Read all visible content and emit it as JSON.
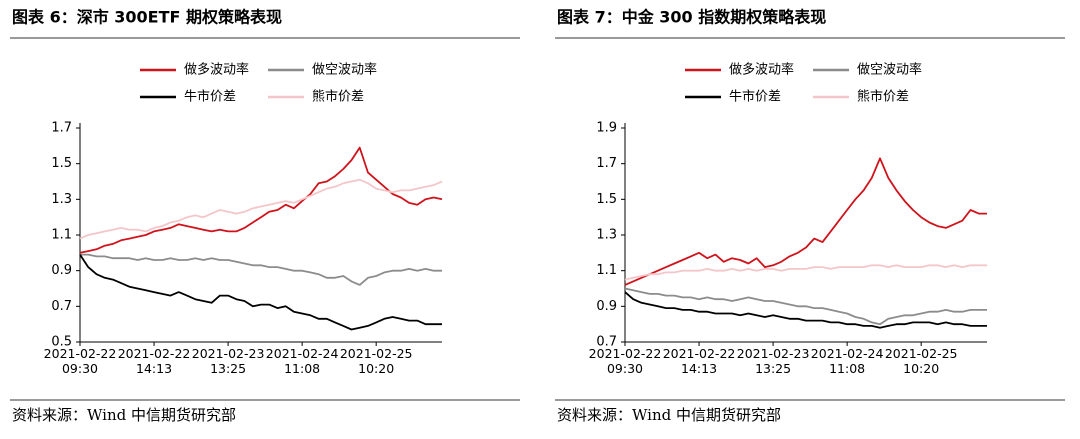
{
  "chart_data": [
    {
      "type": "line",
      "title": "图表 6：深市 300ETF 期权策略表现",
      "source": "资料来源：Wind 中信期货研究部",
      "categories": [
        "2021-02-22\n09:30",
        null,
        null,
        null,
        null,
        null,
        null,
        null,
        null,
        "2021-02-22\n14:13",
        null,
        null,
        null,
        null,
        null,
        null,
        null,
        null,
        "2021-02-23\n13:25",
        null,
        null,
        null,
        null,
        null,
        null,
        null,
        null,
        "2021-02-24\n11:08",
        null,
        null,
        null,
        null,
        null,
        null,
        null,
        null,
        "2021-02-25\n10:20",
        null,
        null,
        null,
        null,
        null,
        null,
        null,
        null
      ],
      "ylim": [
        0.5,
        1.7
      ],
      "yticks": [
        0.5,
        0.7,
        0.9,
        1.1,
        1.3,
        1.5,
        1.7
      ],
      "series": [
        {
          "name": "做多波动率",
          "color": "#d0121b",
          "values": [
            1.0,
            1.01,
            1.02,
            1.04,
            1.05,
            1.07,
            1.08,
            1.09,
            1.1,
            1.12,
            1.13,
            1.14,
            1.16,
            1.15,
            1.14,
            1.13,
            1.12,
            1.13,
            1.12,
            1.12,
            1.14,
            1.17,
            1.2,
            1.23,
            1.24,
            1.27,
            1.25,
            1.29,
            1.33,
            1.39,
            1.4,
            1.43,
            1.47,
            1.52,
            1.59,
            1.45,
            1.41,
            1.37,
            1.33,
            1.31,
            1.28,
            1.27,
            1.3,
            1.31,
            1.3
          ]
        },
        {
          "name": "做空波动率",
          "color": "#8c8c8c",
          "values": [
            0.99,
            0.99,
            0.98,
            0.98,
            0.97,
            0.97,
            0.97,
            0.96,
            0.97,
            0.96,
            0.96,
            0.97,
            0.96,
            0.96,
            0.97,
            0.96,
            0.97,
            0.96,
            0.96,
            0.95,
            0.94,
            0.93,
            0.93,
            0.92,
            0.92,
            0.91,
            0.9,
            0.9,
            0.89,
            0.88,
            0.86,
            0.86,
            0.87,
            0.84,
            0.82,
            0.86,
            0.87,
            0.89,
            0.9,
            0.9,
            0.91,
            0.9,
            0.91,
            0.9,
            0.9
          ]
        },
        {
          "name": "牛市价差",
          "color": "#000000",
          "values": [
            0.99,
            0.92,
            0.88,
            0.86,
            0.85,
            0.83,
            0.81,
            0.8,
            0.79,
            0.78,
            0.77,
            0.76,
            0.78,
            0.76,
            0.74,
            0.73,
            0.72,
            0.76,
            0.76,
            0.74,
            0.73,
            0.7,
            0.71,
            0.71,
            0.69,
            0.7,
            0.67,
            0.66,
            0.65,
            0.63,
            0.63,
            0.61,
            0.59,
            0.57,
            0.58,
            0.59,
            0.61,
            0.63,
            0.64,
            0.63,
            0.62,
            0.62,
            0.6,
            0.6,
            0.6
          ]
        },
        {
          "name": "熊市价差",
          "color": "#f4c6c9",
          "values": [
            1.08,
            1.1,
            1.11,
            1.12,
            1.13,
            1.14,
            1.13,
            1.13,
            1.12,
            1.14,
            1.15,
            1.17,
            1.18,
            1.2,
            1.21,
            1.2,
            1.22,
            1.24,
            1.23,
            1.22,
            1.23,
            1.25,
            1.26,
            1.27,
            1.28,
            1.29,
            1.28,
            1.3,
            1.32,
            1.34,
            1.36,
            1.37,
            1.39,
            1.4,
            1.41,
            1.39,
            1.36,
            1.35,
            1.34,
            1.35,
            1.35,
            1.36,
            1.37,
            1.38,
            1.4
          ]
        }
      ]
    },
    {
      "type": "line",
      "title": "图表 7：中金 300 指数期权策略表现",
      "source": "资料来源：Wind 中信期货研究部",
      "categories": [
        "2021-02-22\n09:30",
        null,
        null,
        null,
        null,
        null,
        null,
        null,
        null,
        "2021-02-22\n14:13",
        null,
        null,
        null,
        null,
        null,
        null,
        null,
        null,
        "2021-02-23\n13:25",
        null,
        null,
        null,
        null,
        null,
        null,
        null,
        null,
        "2021-02-24\n11:08",
        null,
        null,
        null,
        null,
        null,
        null,
        null,
        null,
        "2021-02-25\n10:20",
        null,
        null,
        null,
        null,
        null,
        null,
        null,
        null
      ],
      "ylim": [
        0.7,
        1.9
      ],
      "yticks": [
        0.7,
        0.9,
        1.1,
        1.3,
        1.5,
        1.7,
        1.9
      ],
      "series": [
        {
          "name": "做多波动率",
          "color": "#d0121b",
          "values": [
            1.02,
            1.04,
            1.06,
            1.08,
            1.1,
            1.12,
            1.14,
            1.16,
            1.18,
            1.2,
            1.17,
            1.19,
            1.15,
            1.17,
            1.16,
            1.14,
            1.17,
            1.12,
            1.13,
            1.15,
            1.18,
            1.2,
            1.23,
            1.28,
            1.26,
            1.32,
            1.38,
            1.44,
            1.5,
            1.55,
            1.62,
            1.73,
            1.62,
            1.55,
            1.49,
            1.44,
            1.4,
            1.37,
            1.35,
            1.34,
            1.36,
            1.38,
            1.44,
            1.42,
            1.42
          ]
        },
        {
          "name": "做空波动率",
          "color": "#8c8c8c",
          "values": [
            1.0,
            0.99,
            0.98,
            0.97,
            0.97,
            0.96,
            0.96,
            0.95,
            0.95,
            0.94,
            0.95,
            0.94,
            0.94,
            0.93,
            0.94,
            0.95,
            0.94,
            0.93,
            0.93,
            0.92,
            0.91,
            0.9,
            0.9,
            0.89,
            0.89,
            0.88,
            0.87,
            0.86,
            0.84,
            0.83,
            0.81,
            0.8,
            0.83,
            0.84,
            0.85,
            0.85,
            0.86,
            0.87,
            0.87,
            0.88,
            0.87,
            0.87,
            0.88,
            0.88,
            0.88
          ]
        },
        {
          "name": "牛市价差",
          "color": "#000000",
          "values": [
            0.98,
            0.94,
            0.92,
            0.91,
            0.9,
            0.89,
            0.89,
            0.88,
            0.88,
            0.87,
            0.87,
            0.86,
            0.86,
            0.86,
            0.85,
            0.86,
            0.85,
            0.84,
            0.85,
            0.84,
            0.83,
            0.83,
            0.82,
            0.82,
            0.82,
            0.81,
            0.81,
            0.8,
            0.8,
            0.79,
            0.79,
            0.78,
            0.79,
            0.8,
            0.8,
            0.81,
            0.81,
            0.81,
            0.8,
            0.81,
            0.8,
            0.8,
            0.79,
            0.79,
            0.79
          ]
        },
        {
          "name": "熊市价差",
          "color": "#f4c6c9",
          "values": [
            1.05,
            1.06,
            1.07,
            1.08,
            1.08,
            1.09,
            1.09,
            1.1,
            1.1,
            1.1,
            1.11,
            1.1,
            1.1,
            1.11,
            1.1,
            1.11,
            1.1,
            1.11,
            1.11,
            1.1,
            1.11,
            1.11,
            1.11,
            1.12,
            1.12,
            1.11,
            1.12,
            1.12,
            1.12,
            1.12,
            1.13,
            1.13,
            1.12,
            1.13,
            1.12,
            1.12,
            1.12,
            1.13,
            1.13,
            1.12,
            1.13,
            1.12,
            1.13,
            1.13,
            1.13
          ]
        }
      ]
    }
  ]
}
